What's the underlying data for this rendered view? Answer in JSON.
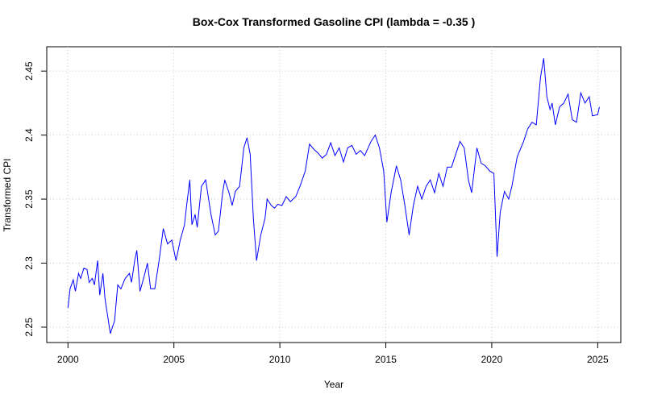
{
  "chart_data": {
    "type": "line",
    "title": "Box-Cox Transformed Gasoline CPI (lambda = -0.35 )",
    "x_label": "Year",
    "y_label": "Transformed CPI",
    "xlim": [
      1999.0,
      2026.09
    ],
    "ylim": [
      2.238,
      2.469
    ],
    "xticks": [
      2000,
      2005,
      2010,
      2015,
      2020,
      2025
    ],
    "yticks": [
      2.25,
      2.3,
      2.35,
      2.4,
      2.45
    ],
    "grid": true,
    "x": [
      2000.0,
      2000.1,
      2000.25,
      2000.35,
      2000.5,
      2000.6,
      2000.75,
      2000.9,
      2001.0,
      2001.15,
      2001.25,
      2001.4,
      2001.5,
      2001.65,
      2001.75,
      2001.9,
      2002.0,
      2002.2,
      2002.35,
      2002.5,
      2002.7,
      2002.9,
      2003.0,
      2003.15,
      2003.25,
      2003.4,
      2003.6,
      2003.75,
      2003.9,
      2004.1,
      2004.3,
      2004.5,
      2004.7,
      2004.9,
      2005.1,
      2005.3,
      2005.5,
      2005.6,
      2005.75,
      2005.85,
      2006.0,
      2006.1,
      2006.3,
      2006.5,
      2006.75,
      2006.95,
      2007.1,
      2007.3,
      2007.4,
      2007.6,
      2007.75,
      2007.9,
      2008.1,
      2008.3,
      2008.45,
      2008.6,
      2008.75,
      2008.9,
      2009.1,
      2009.3,
      2009.4,
      2009.6,
      2009.75,
      2009.9,
      2010.1,
      2010.3,
      2010.5,
      2010.75,
      2010.95,
      2011.2,
      2011.4,
      2011.6,
      2011.8,
      2012.0,
      2012.2,
      2012.4,
      2012.6,
      2012.8,
      2013.0,
      2013.2,
      2013.4,
      2013.6,
      2013.8,
      2014.0,
      2014.3,
      2014.5,
      2014.7,
      2014.9,
      2015.05,
      2015.25,
      2015.5,
      2015.7,
      2015.9,
      2016.1,
      2016.3,
      2016.5,
      2016.7,
      2016.9,
      2017.1,
      2017.3,
      2017.5,
      2017.7,
      2017.9,
      2018.1,
      2018.3,
      2018.5,
      2018.7,
      2018.9,
      2019.05,
      2019.3,
      2019.5,
      2019.7,
      2019.9,
      2020.1,
      2020.25,
      2020.4,
      2020.6,
      2020.8,
      2020.95,
      2021.2,
      2021.5,
      2021.7,
      2021.9,
      2022.1,
      2022.3,
      2022.45,
      2022.6,
      2022.75,
      2022.85,
      2023.0,
      2023.2,
      2023.4,
      2023.6,
      2023.8,
      2024.0,
      2024.2,
      2024.4,
      2024.6,
      2024.75,
      2025.0,
      2025.08
    ],
    "series": [
      {
        "color": "#0000ff",
        "values": [
          2.265,
          2.28,
          2.287,
          2.278,
          2.292,
          2.288,
          2.296,
          2.295,
          2.285,
          2.288,
          2.283,
          2.302,
          2.275,
          2.292,
          2.272,
          2.256,
          2.245,
          2.255,
          2.283,
          2.28,
          2.288,
          2.292,
          2.285,
          2.302,
          2.31,
          2.278,
          2.29,
          2.3,
          2.28,
          2.28,
          2.302,
          2.327,
          2.315,
          2.318,
          2.302,
          2.318,
          2.33,
          2.345,
          2.365,
          2.33,
          2.338,
          2.328,
          2.36,
          2.365,
          2.338,
          2.322,
          2.325,
          2.355,
          2.365,
          2.355,
          2.345,
          2.356,
          2.36,
          2.39,
          2.398,
          2.385,
          2.335,
          2.302,
          2.322,
          2.335,
          2.35,
          2.345,
          2.343,
          2.346,
          2.345,
          2.352,
          2.348,
          2.352,
          2.36,
          2.372,
          2.393,
          2.389,
          2.386,
          2.382,
          2.385,
          2.394,
          2.384,
          2.39,
          2.379,
          2.39,
          2.392,
          2.385,
          2.388,
          2.384,
          2.395,
          2.4,
          2.39,
          2.372,
          2.332,
          2.355,
          2.376,
          2.365,
          2.345,
          2.322,
          2.345,
          2.36,
          2.35,
          2.36,
          2.365,
          2.355,
          2.37,
          2.36,
          2.375,
          2.375,
          2.385,
          2.395,
          2.39,
          2.365,
          2.355,
          2.39,
          2.378,
          2.376,
          2.372,
          2.37,
          2.305,
          2.34,
          2.356,
          2.35,
          2.36,
          2.383,
          2.395,
          2.405,
          2.41,
          2.408,
          2.445,
          2.46,
          2.43,
          2.42,
          2.425,
          2.408,
          2.422,
          2.425,
          2.432,
          2.412,
          2.41,
          2.433,
          2.425,
          2.43,
          2.415,
          2.416,
          2.422
        ]
      }
    ]
  }
}
